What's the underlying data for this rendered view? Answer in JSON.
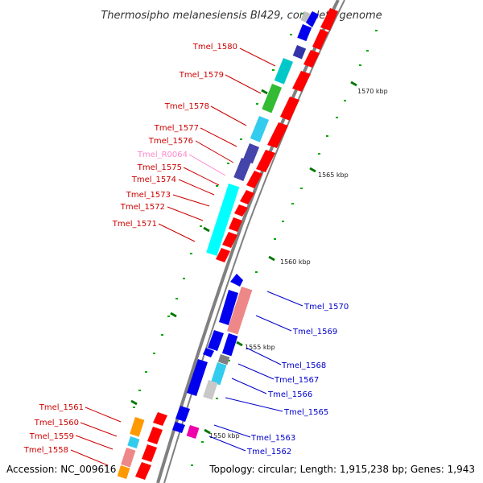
{
  "title": "Thermosipho melanesiensis BI429, complete genome",
  "footer": {
    "accession": "Accession: NC_009616",
    "summary": "Topology: circular; Length: 1,915,238 bp; Genes: 1,943"
  },
  "scale_labels": [
    "1570 kbp",
    "1565 kbp",
    "1560 kbp",
    "1555 kbp",
    "1550 kbp"
  ],
  "colors": {
    "cds_forward": "#ff0000",
    "cds_reverse": "#0000ee",
    "rna": "#ff99cc",
    "backbone": "#808080",
    "label_forward": "#cc0000",
    "label_reverse": "#0000cc",
    "label_rna": "#ff88cc"
  },
  "forward_labels": [
    "Tmel_1580",
    "Tmel_1579",
    "Tmel_1578",
    "Tmel_1577",
    "Tmel_1576",
    "Tmel_R0064",
    "Tmel_1575",
    "Tmel_1574",
    "Tmel_1573",
    "Tmel_1572",
    "Tmel_1571"
  ],
  "reverse_labels": [
    "Tmel_1570",
    "Tmel_1569",
    "Tmel_1568",
    "Tmel_1567",
    "Tmel_1566",
    "Tmel_1565",
    "Tmel_1563",
    "Tmel_1562"
  ],
  "bottom_left_labels": [
    "Tmel_1561",
    "Tmel_1560",
    "Tmel_1559",
    "Tmel_1558"
  ]
}
